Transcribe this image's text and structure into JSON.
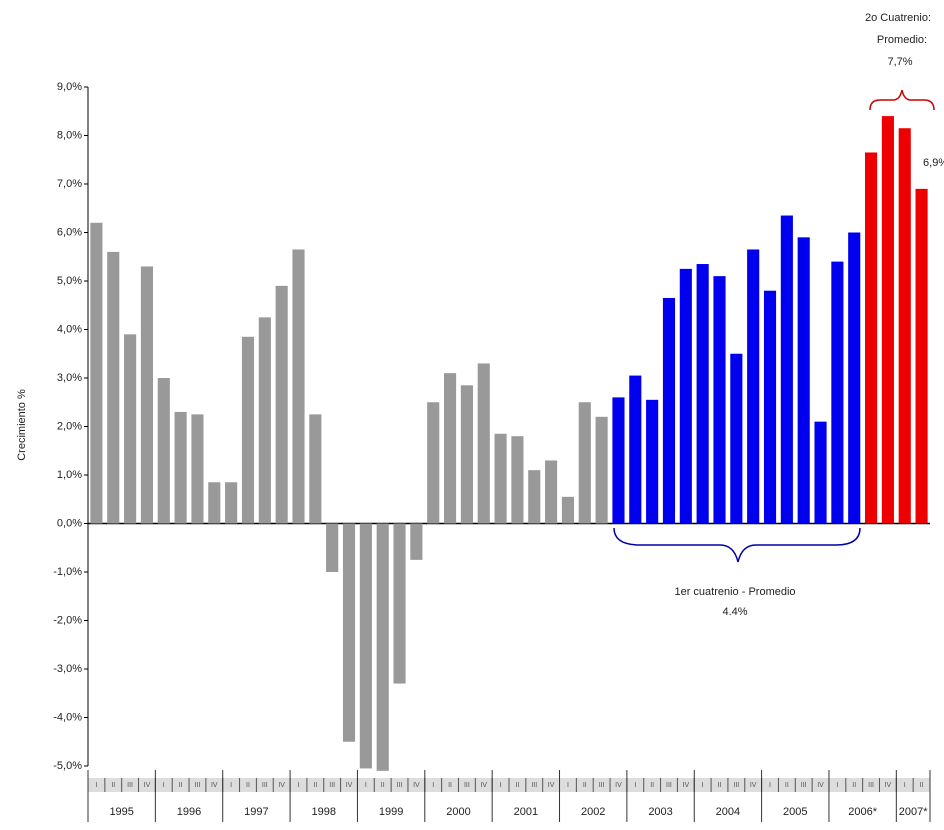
{
  "chart_data": {
    "type": "bar",
    "y_label": "Crecimiento %",
    "ylim": [
      -5,
      9
    ],
    "yticks": [
      {
        "value": -5,
        "label": "-5,0%"
      },
      {
        "value": -4,
        "label": "-4,0%"
      },
      {
        "value": -3,
        "label": "-3,0%"
      },
      {
        "value": -2,
        "label": "-2,0%"
      },
      {
        "value": -1,
        "label": "-1,0%"
      },
      {
        "value": 0,
        "label": "0,0%"
      },
      {
        "value": 1,
        "label": "1,0%"
      },
      {
        "value": 2,
        "label": "2,0%"
      },
      {
        "value": 3,
        "label": "3,0%"
      },
      {
        "value": 4,
        "label": "4,0%"
      },
      {
        "value": 5,
        "label": "5,0%"
      },
      {
        "value": 6,
        "label": "6,0%"
      },
      {
        "value": 7,
        "label": "7,0%"
      },
      {
        "value": 8,
        "label": "8,0%"
      },
      {
        "value": 9,
        "label": "9,0%"
      }
    ],
    "categories": [
      "I",
      "II",
      "III",
      "IV",
      "I",
      "II",
      "III",
      "IV",
      "I",
      "II",
      "III",
      "IV",
      "I",
      "II",
      "III",
      "IV",
      "I",
      "II",
      "III",
      "IV",
      "I",
      "II",
      "III",
      "IV",
      "I",
      "II",
      "III",
      "IV",
      "I",
      "II",
      "III",
      "IV",
      "I",
      "II",
      "III",
      "IV",
      "I",
      "II",
      "III",
      "IV",
      "I",
      "II",
      "III",
      "IV",
      "I",
      "II",
      "III",
      "IV",
      "I",
      "II"
    ],
    "years": [
      "1995",
      "1996",
      "1997",
      "1998",
      "1999",
      "2000",
      "2001",
      "2002",
      "2003",
      "2004",
      "2005",
      "2006*",
      "2007*"
    ],
    "values": [
      6.2,
      5.6,
      3.9,
      5.3,
      3.0,
      2.3,
      2.25,
      0.85,
      0.85,
      3.85,
      4.25,
      4.9,
      5.65,
      2.25,
      -1.0,
      -4.5,
      -5.05,
      -5.1,
      -3.3,
      -0.75,
      2.5,
      3.1,
      2.85,
      3.3,
      1.85,
      1.8,
      1.1,
      1.3,
      0.55,
      2.5,
      2.2,
      2.6,
      3.05,
      2.55,
      4.65,
      5.25,
      5.35,
      5.1,
      3.5,
      5.65,
      4.8,
      6.35,
      5.9,
      2.1,
      5.4,
      6.0,
      7.65,
      8.4,
      8.15,
      6.9
    ],
    "value_labels": [
      null,
      null,
      null,
      null,
      null,
      null,
      null,
      null,
      null,
      null,
      null,
      null,
      null,
      null,
      null,
      null,
      null,
      null,
      null,
      null,
      null,
      null,
      null,
      null,
      null,
      null,
      null,
      null,
      null,
      null,
      null,
      null,
      null,
      null,
      null,
      null,
      null,
      null,
      null,
      null,
      null,
      null,
      null,
      null,
      null,
      null,
      null,
      null,
      null,
      "6,9%"
    ],
    "colors": [
      "#999999",
      "#999999",
      "#999999",
      "#999999",
      "#999999",
      "#999999",
      "#999999",
      "#999999",
      "#999999",
      "#999999",
      "#999999",
      "#999999",
      "#999999",
      "#999999",
      "#999999",
      "#999999",
      "#999999",
      "#999999",
      "#999999",
      "#999999",
      "#999999",
      "#999999",
      "#999999",
      "#999999",
      "#999999",
      "#999999",
      "#999999",
      "#999999",
      "#999999",
      "#999999",
      "#999999",
      "#0000ee",
      "#0000ee",
      "#0000ee",
      "#0000ee",
      "#0000ee",
      "#0000ee",
      "#0000ee",
      "#0000ee",
      "#0000ee",
      "#0000ee",
      "#0000ee",
      "#0000ee",
      "#0000ee",
      "#0000ee",
      "#0000ee",
      "#ee0000",
      "#ee0000",
      "#ee0000",
      "#ee0000"
    ],
    "annotations": [
      "2o Cuatrenio:",
      "Promedio:",
      "7,7%",
      "1er cuatrenio - Promedio",
      "4.4%"
    ]
  }
}
